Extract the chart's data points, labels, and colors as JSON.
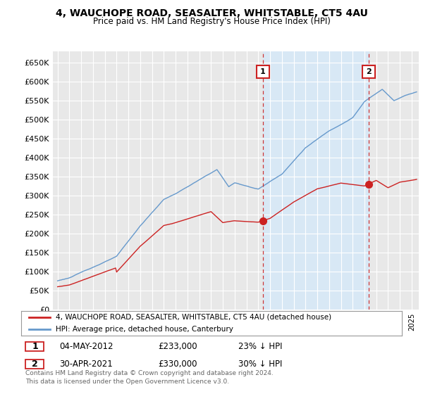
{
  "title": "4, WAUCHOPE ROAD, SEASALTER, WHITSTABLE, CT5 4AU",
  "subtitle": "Price paid vs. HM Land Registry's House Price Index (HPI)",
  "ylabel_values": [
    "£0",
    "£50K",
    "£100K",
    "£150K",
    "£200K",
    "£250K",
    "£300K",
    "£350K",
    "£400K",
    "£450K",
    "£500K",
    "£550K",
    "£600K",
    "£650K"
  ],
  "yticks": [
    0,
    50000,
    100000,
    150000,
    200000,
    250000,
    300000,
    350000,
    400000,
    450000,
    500000,
    550000,
    600000,
    650000
  ],
  "ylim": [
    0,
    680000
  ],
  "background_color": "#e8e8e8",
  "shade_color": "#d8e8f5",
  "grid_color": "#ffffff",
  "hpi_color": "#6699cc",
  "price_color": "#cc2222",
  "sale1_date": "04-MAY-2012",
  "sale1_price": "£233,000",
  "sale1_hpi": "23% ↓ HPI",
  "sale2_date": "30-APR-2021",
  "sale2_price": "£330,000",
  "sale2_hpi": "30% ↓ HPI",
  "legend_label1": "4, WAUCHOPE ROAD, SEASALTER, WHITSTABLE, CT5 4AU (detached house)",
  "legend_label2": "HPI: Average price, detached house, Canterbury",
  "footer": "Contains HM Land Registry data © Crown copyright and database right 2024.\nThis data is licensed under the Open Government Licence v3.0.",
  "sale1_x": 2012.37,
  "sale1_y": 233000,
  "sale2_x": 2021.33,
  "sale2_y": 330000,
  "xlim_left": 1994.6,
  "xlim_right": 2025.6
}
